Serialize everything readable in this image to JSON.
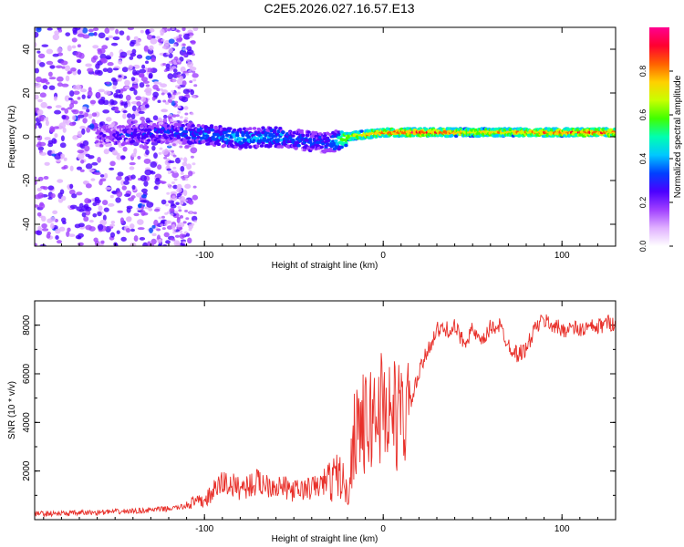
{
  "figure": {
    "title": "C2E5.2026.027.16.57.E13"
  },
  "colors": {
    "trace": "#e8302a",
    "grid": "#c8c8c8",
    "axis": "#000000",
    "colorbar_stops": [
      "#ffffff",
      "#e0b0ff",
      "#a040ff",
      "#4b00ff",
      "#0040ff",
      "#00c8ff",
      "#00ffb0",
      "#40ff00",
      "#c8ff00",
      "#ffd000",
      "#ff6000",
      "#ff0030",
      "#ff0090"
    ]
  },
  "chart_data": [
    {
      "type": "heatmap",
      "xlabel": "Height of straight line (km)",
      "ylabel": "Frequency (Hz)",
      "xlim": [
        -195,
        130
      ],
      "ylim": [
        -50,
        50
      ],
      "xticks": [
        "-100",
        "0",
        "100"
      ],
      "yticks": [
        "-40",
        "-20",
        "0",
        "20",
        "40"
      ],
      "colorbar": {
        "label": "Normalized spectral amplitude",
        "range": [
          0,
          1
        ],
        "ticks": [
          "0.0",
          "0.2",
          "0.4",
          "0.6",
          "0.8"
        ]
      },
      "ridge": {
        "x": [
          -160,
          -140,
          -120,
          -100,
          -80,
          -60,
          -40,
          -30,
          -20,
          -10,
          0,
          20,
          50,
          100,
          130
        ],
        "center_hz": [
          0,
          1,
          2,
          1,
          -1,
          0,
          -2,
          -3,
          0,
          1,
          2,
          2,
          2,
          2,
          2
        ],
        "amplitude": [
          0.2,
          0.25,
          0.3,
          0.35,
          0.4,
          0.4,
          0.3,
          0.3,
          0.7,
          0.8,
          0.85,
          0.9,
          0.75,
          0.85,
          0.9
        ]
      }
    },
    {
      "type": "line",
      "xlabel": "Height of straight line (km)",
      "ylabel": "SNR (10 * v/v)",
      "xlim": [
        -195,
        130
      ],
      "ylim": [
        0,
        9000
      ],
      "xticks": [
        "-100",
        "0",
        "100"
      ],
      "yticks": [
        "2000",
        "4000",
        "6000",
        "8000"
      ],
      "series": [
        {
          "name": "SNR",
          "x": [
            -195,
            -180,
            -160,
            -140,
            -120,
            -110,
            -100,
            -90,
            -80,
            -70,
            -60,
            -50,
            -40,
            -35,
            -30,
            -25,
            -22,
            -20,
            -18,
            -15,
            -10,
            -5,
            0,
            5,
            10,
            15,
            20,
            25,
            30,
            35,
            40,
            45,
            50,
            55,
            60,
            65,
            70,
            75,
            80,
            85,
            90,
            95,
            100,
            105,
            110,
            115,
            120,
            125,
            130
          ],
          "y": [
            250,
            250,
            300,
            350,
            450,
            550,
            650,
            1300,
            1100,
            1300,
            1200,
            1000,
            1100,
            1200,
            1500,
            1900,
            1500,
            900,
            2300,
            4200,
            3800,
            4300,
            4800,
            4400,
            4200,
            4700,
            6000,
            7000,
            7800,
            7800,
            7900,
            7300,
            7800,
            7200,
            7900,
            8000,
            7200,
            6800,
            7000,
            7900,
            8200,
            8000,
            7800,
            7900,
            7800,
            7900,
            7900,
            8100,
            8100
          ]
        }
      ]
    }
  ]
}
